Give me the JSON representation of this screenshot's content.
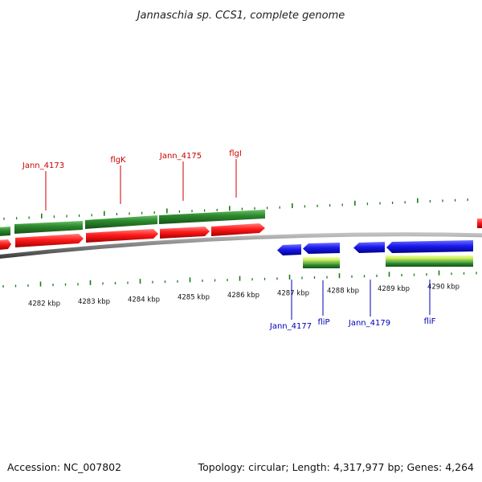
{
  "title": "Jannaschia sp. CCS1, complete genome",
  "footer": {
    "accession": "Accession: NC_007802",
    "summary": "Topology: circular; Length: 4,317,977 bp; Genes: 4,264"
  },
  "colors": {
    "forward_label": "#cc0000",
    "reverse_label": "#0000bb",
    "tick": "#1a7a1a",
    "cds_red": "#ff1a1a",
    "cds_blue": "#1a1aee",
    "gene_green": "#2e8b2e",
    "lime": "#c8f060",
    "backbone": "#808080"
  },
  "scale": {
    "labels": [
      "4282 kbp",
      "4283 kbp",
      "4284 kbp",
      "4285 kbp",
      "4286 kbp",
      "4287 kbp",
      "4288 kbp",
      "4289 kbp",
      "4290 kbp"
    ]
  },
  "forward_labels": [
    "Jann_4173",
    "flgK",
    "Jann_4175",
    "flgI"
  ],
  "reverse_labels": [
    "Jann_4177",
    "fliP",
    "Jann_4179",
    "fliF"
  ]
}
